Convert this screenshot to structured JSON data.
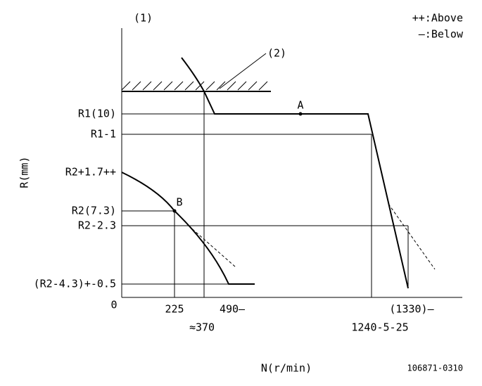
{
  "figure_label": "(1)",
  "legend": {
    "above": "++:Above",
    "below": "—:Below"
  },
  "callout": "(2)",
  "y_axis": {
    "title": "R(mm)",
    "labels": [
      "R1(10)",
      "R1-1",
      "R2+1.7++",
      "R2(7.3)",
      "R2-2.3",
      "(R2-4.3)+-0.5",
      "0"
    ]
  },
  "x_axis": {
    "title": "N(r/min)",
    "labels": [
      "225",
      "490—",
      "≈370",
      "(1330)—",
      "1240-5-25"
    ]
  },
  "points": [
    "A",
    "B"
  ],
  "drawing_code": "106871-0310"
}
